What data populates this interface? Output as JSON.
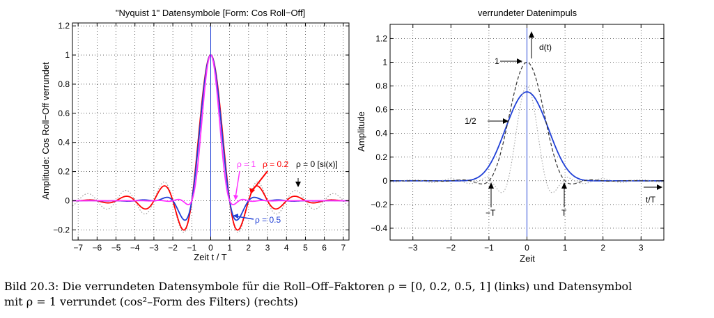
{
  "chart_data": [
    {
      "type": "line",
      "title": "\"Nyquist 1\" Datensymbole [Form: Cos Roll−Off]",
      "xlabel": "Zeit  t / T",
      "ylabel": "Amplitude: Cos Roll−Off verrundet",
      "xlim": [
        -7.3,
        7.3
      ],
      "ylim": [
        -0.27,
        1.22
      ],
      "xticks": [
        -7,
        -6,
        -5,
        -4,
        -3,
        -2,
        -1,
        0,
        1,
        2,
        3,
        4,
        5,
        6,
        7
      ],
      "xtick_labels": [
        "−7",
        "−6",
        "−5",
        "−4",
        "−3",
        "−2",
        "−1",
        "0",
        "1",
        "2",
        "3",
        "4",
        "5",
        "6",
        "7"
      ],
      "yticks": [
        -0.2,
        0,
        0.2,
        0.4,
        0.6,
        0.8,
        1,
        1.2
      ],
      "ytick_labels": [
        "−0.2",
        "0",
        "0.2",
        "0.4",
        "0.6",
        "0.8",
        "1",
        "1.2"
      ],
      "grid": true,
      "series": [
        {
          "name": "ρ = 0 [si(x)]",
          "rolloff": 0,
          "color": "#999999",
          "style": "dotted"
        },
        {
          "name": "ρ = 0.2",
          "rolloff": 0.2,
          "color": "#ff0000",
          "style": "solid"
        },
        {
          "name": "ρ = 0.5",
          "rolloff": 0.5,
          "color": "#1f3fd6",
          "style": "solid"
        },
        {
          "name": "ρ = 1",
          "rolloff": 1,
          "color": "#ff33ff",
          "style": "solid"
        }
      ],
      "annotations": [
        "ρ = 1",
        "ρ = 0.2",
        "ρ = 0 [si(x)]",
        "ρ = 0.5"
      ]
    },
    {
      "type": "line",
      "title": "verrundeter Datenimpuls",
      "xlabel": "Zeit",
      "ylabel": "Amplitude",
      "xlim": [
        -3.6,
        3.6
      ],
      "ylim": [
        -0.5,
        1.32
      ],
      "xticks": [
        -3,
        -2,
        -1,
        0,
        1,
        2,
        3
      ],
      "xtick_labels": [
        "−3",
        "−2",
        "−1",
        "0",
        "1",
        "2",
        "3"
      ],
      "yticks": [
        -0.4,
        -0.2,
        0,
        0.2,
        0.4,
        0.6,
        0.8,
        1,
        1.2
      ],
      "ytick_labels": [
        "−0.4",
        "−0.2",
        "0",
        "0.2",
        "0.4",
        "0.6",
        "0.8",
        "1",
        "1.2"
      ],
      "grid": true,
      "series": [
        {
          "name": "d(t)",
          "kind": "rounded pulse",
          "color": "#1f3fd6",
          "style": "solid"
        },
        {
          "name": "",
          "kind": "cos roll-off ρ = 1",
          "color": "#333333",
          "style": "dashed"
        },
        {
          "name": "",
          "kind": "cos² filter",
          "color": "#aaaaaa",
          "style": "dotted"
        }
      ],
      "annotations": [
        "1",
        "1/2",
        "d(t)",
        "−T",
        "T",
        "t/T"
      ]
    }
  ],
  "caption": {
    "line1": "Bild 20.3: Die verrundeten Datensymbole für die Roll–Off–Faktoren ρ = [0,  0.2,  0.5,  1] (links) und Datensymbol",
    "line2": "mit ρ = 1 verrundet (cos²–Form des Filters) (rechts)"
  }
}
